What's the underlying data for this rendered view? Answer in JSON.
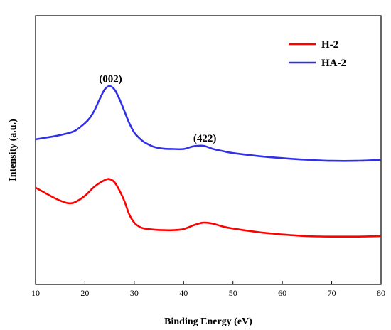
{
  "chart_data": {
    "type": "line",
    "title": "",
    "xlabel": "Binding Energy (eV)",
    "ylabel": "Intensity (a.u.)",
    "xlim": [
      10,
      80
    ],
    "ylim": [
      0,
      100
    ],
    "x_ticks": [
      "10",
      "20",
      "30",
      "40",
      "50",
      "60",
      "70",
      "80"
    ],
    "y_ticks_shown": false,
    "grid": false,
    "legend_position": "top-right",
    "series": [
      {
        "name": "H-2",
        "color": "#ff0000",
        "x": [
          10,
          12,
          14,
          16,
          17,
          18,
          20,
          22,
          24,
          25,
          26,
          27,
          28,
          29,
          30,
          31,
          32,
          34,
          36,
          38,
          40,
          42,
          44,
          46,
          48,
          50,
          55,
          60,
          65,
          70,
          75,
          80
        ],
        "y": [
          36,
          34,
          32,
          30.5,
          30.2,
          30.6,
          33,
          36.5,
          38.8,
          39.2,
          38,
          35,
          31,
          26,
          23,
          21.5,
          20.8,
          20.4,
          20.2,
          20.2,
          20.6,
          22,
          23,
          22.6,
          21.5,
          20.8,
          19.5,
          18.6,
          18,
          17.8,
          17.8,
          18
        ]
      },
      {
        "name": "HA-2",
        "color": "#3030e8",
        "x": [
          10,
          12,
          14,
          16,
          18,
          20,
          21,
          22,
          23,
          24,
          25,
          26,
          27,
          28,
          29,
          30,
          31,
          32,
          34,
          36,
          38,
          40,
          42,
          44,
          46,
          48,
          50,
          55,
          60,
          65,
          70,
          75,
          80
        ],
        "y": [
          54,
          54.6,
          55.2,
          56,
          57.2,
          60,
          62,
          65,
          69,
          72.5,
          73.8,
          72.5,
          69,
          64.5,
          60,
          56.5,
          54.5,
          53,
          51.2,
          50.5,
          50.4,
          50.4,
          51.4,
          51.6,
          50.4,
          49.6,
          48.9,
          47.8,
          47,
          46.4,
          46,
          46,
          46.4
        ]
      }
    ],
    "annotations": [
      {
        "text": "(002)",
        "x": 25.2,
        "y": 75.3
      },
      {
        "text": "(422)",
        "x": 44.3,
        "y": 53.2
      }
    ]
  }
}
